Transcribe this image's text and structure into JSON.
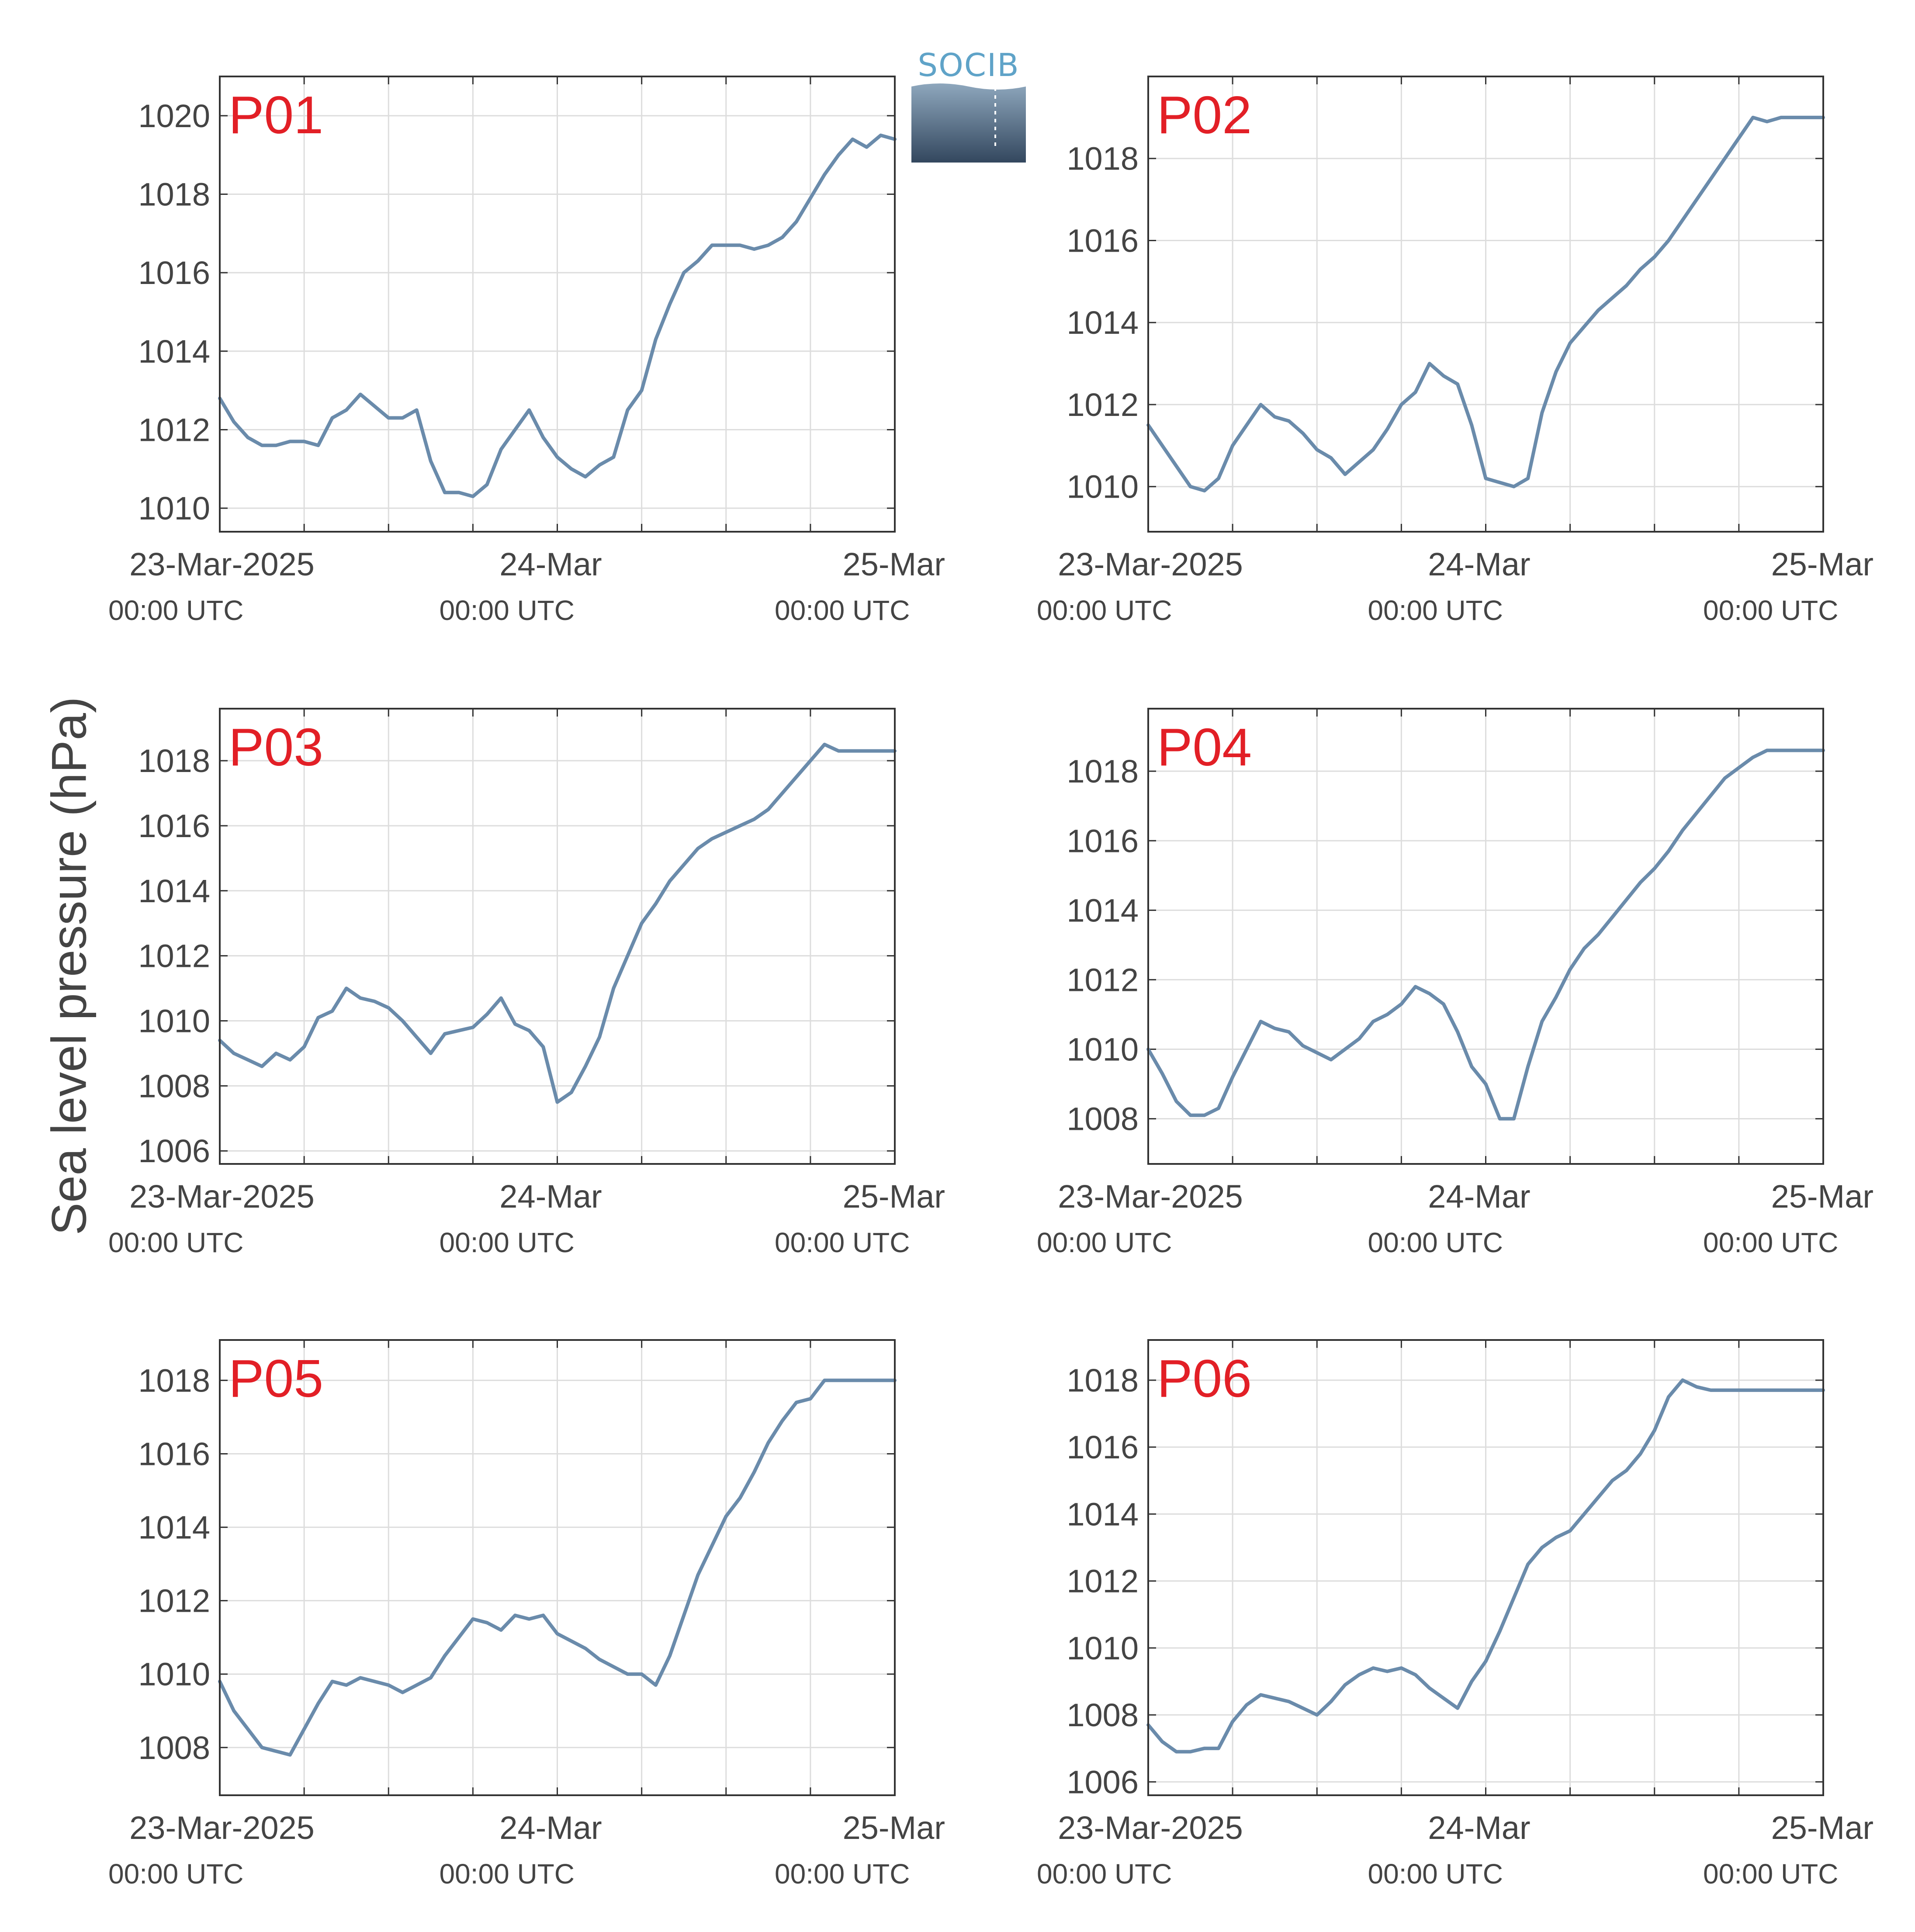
{
  "figure": {
    "ylabel": "Sea level pressure (hPa)",
    "logo_text": "SOCIB",
    "x_tick_labels": [
      "23-Mar-2025",
      "24-Mar",
      "25-Mar"
    ],
    "x_tick_sublabels": [
      "00:00 UTC",
      "00:00 UTC",
      "00:00 UTC"
    ]
  },
  "colors": {
    "line": "#6a8bab",
    "panel_label": "#e21f26",
    "axis": "#333333",
    "grid": "#dddddd",
    "tick_text": "#444444",
    "logo_text": "#5fa3c8",
    "logo_top": "#8ea7bd",
    "logo_bottom": "#33475e"
  },
  "chart_data": [
    {
      "type": "line",
      "panel": "P01",
      "xlim": [
        "2025-03-23T00:00",
        "2025-03-25T00:00"
      ],
      "ylim": [
        1009.4,
        1021.0
      ],
      "yticks": [
        1010,
        1012,
        1014,
        1016,
        1018,
        1020
      ],
      "x_hours": [
        0,
        1,
        2,
        3,
        4,
        5,
        6,
        7,
        8,
        9,
        10,
        11,
        12,
        13,
        14,
        15,
        16,
        17,
        18,
        19,
        20,
        21,
        22,
        23,
        24,
        25,
        26,
        27,
        28,
        29,
        30,
        31,
        32,
        33,
        34,
        35,
        36,
        37,
        38,
        39,
        40,
        41,
        42,
        43,
        44,
        45,
        46,
        47,
        48
      ],
      "values": [
        1012.8,
        1012.2,
        1011.8,
        1011.6,
        1011.6,
        1011.7,
        1011.7,
        1011.6,
        1012.3,
        1012.5,
        1012.9,
        1012.6,
        1012.3,
        1012.3,
        1012.5,
        1011.2,
        1010.4,
        1010.4,
        1010.3,
        1010.6,
        1011.5,
        1012.0,
        1012.5,
        1011.8,
        1011.3,
        1011.0,
        1010.8,
        1011.1,
        1011.3,
        1012.5,
        1013.0,
        1014.3,
        1015.2,
        1016.0,
        1016.3,
        1016.7,
        1016.7,
        1016.7,
        1016.6,
        1016.7,
        1016.9,
        1017.3,
        1017.9,
        1018.5,
        1019.0,
        1019.4,
        1019.2,
        1019.5,
        1019.4
      ]
    },
    {
      "type": "line",
      "panel": "P02",
      "xlim": [
        "2025-03-23T00:00",
        "2025-03-25T00:00"
      ],
      "ylim": [
        1008.9,
        1020.0
      ],
      "yticks": [
        1010,
        1012,
        1014,
        1016,
        1018
      ],
      "x_hours": [
        0,
        1,
        2,
        3,
        4,
        5,
        6,
        7,
        8,
        9,
        10,
        11,
        12,
        13,
        14,
        15,
        16,
        17,
        18,
        19,
        20,
        21,
        22,
        23,
        24,
        25,
        26,
        27,
        28,
        29,
        30,
        31,
        32,
        33,
        34,
        35,
        36,
        37,
        38,
        39,
        40,
        41,
        42,
        43,
        44,
        45,
        46,
        47,
        48
      ],
      "values": [
        1011.5,
        1011.0,
        1010.5,
        1010.0,
        1009.9,
        1010.2,
        1011.0,
        1011.5,
        1012.0,
        1011.7,
        1011.6,
        1011.3,
        1010.9,
        1010.7,
        1010.3,
        1010.6,
        1010.9,
        1011.4,
        1012.0,
        1012.3,
        1013.0,
        1012.7,
        1012.5,
        1011.5,
        1010.2,
        1010.1,
        1010.0,
        1010.2,
        1011.8,
        1012.8,
        1013.5,
        1013.9,
        1014.3,
        1014.6,
        1014.9,
        1015.3,
        1015.6,
        1016.0,
        1016.5,
        1017.0,
        1017.5,
        1018.0,
        1018.5,
        1019.0,
        1018.9,
        1019.0,
        1019.0,
        1019.0,
        1019.0
      ]
    },
    {
      "type": "line",
      "panel": "P03",
      "xlim": [
        "2025-03-23T00:00",
        "2025-03-25T00:00"
      ],
      "ylim": [
        1005.6,
        1019.6
      ],
      "yticks": [
        1006,
        1008,
        1010,
        1012,
        1014,
        1016,
        1018
      ],
      "x_hours": [
        0,
        1,
        2,
        3,
        4,
        5,
        6,
        7,
        8,
        9,
        10,
        11,
        12,
        13,
        14,
        15,
        16,
        17,
        18,
        19,
        20,
        21,
        22,
        23,
        24,
        25,
        26,
        27,
        28,
        29,
        30,
        31,
        32,
        33,
        34,
        35,
        36,
        37,
        38,
        39,
        40,
        41,
        42,
        43,
        44,
        45,
        46,
        47,
        48
      ],
      "values": [
        1009.4,
        1009.0,
        1008.8,
        1008.6,
        1009.0,
        1008.8,
        1009.2,
        1010.1,
        1010.3,
        1011.0,
        1010.7,
        1010.6,
        1010.4,
        1010.0,
        1009.5,
        1009.0,
        1009.6,
        1009.7,
        1009.8,
        1010.2,
        1010.7,
        1009.9,
        1009.7,
        1009.2,
        1007.5,
        1007.8,
        1008.6,
        1009.5,
        1011.0,
        1012.0,
        1013.0,
        1013.6,
        1014.3,
        1014.8,
        1015.3,
        1015.6,
        1015.8,
        1016.0,
        1016.2,
        1016.5,
        1017.0,
        1017.5,
        1018.0,
        1018.5,
        1018.3,
        1018.3,
        1018.3,
        1018.3,
        1018.3
      ]
    },
    {
      "type": "line",
      "panel": "P04",
      "xlim": [
        "2025-03-23T00:00",
        "2025-03-25T00:00"
      ],
      "ylim": [
        1006.7,
        1019.8
      ],
      "yticks": [
        1008,
        1010,
        1012,
        1014,
        1016,
        1018
      ],
      "x_hours": [
        0,
        1,
        2,
        3,
        4,
        5,
        6,
        7,
        8,
        9,
        10,
        11,
        12,
        13,
        14,
        15,
        16,
        17,
        18,
        19,
        20,
        21,
        22,
        23,
        24,
        25,
        26,
        27,
        28,
        29,
        30,
        31,
        32,
        33,
        34,
        35,
        36,
        37,
        38,
        39,
        40,
        41,
        42,
        43,
        44,
        45,
        46,
        47,
        48
      ],
      "values": [
        1010.0,
        1009.3,
        1008.5,
        1008.1,
        1008.1,
        1008.3,
        1009.2,
        1010.0,
        1010.8,
        1010.6,
        1010.5,
        1010.1,
        1009.9,
        1009.7,
        1010.0,
        1010.3,
        1010.8,
        1011.0,
        1011.3,
        1011.8,
        1011.6,
        1011.3,
        1010.5,
        1009.5,
        1009.0,
        1008.0,
        1008.0,
        1009.5,
        1010.8,
        1011.5,
        1012.3,
        1012.9,
        1013.3,
        1013.8,
        1014.3,
        1014.8,
        1015.2,
        1015.7,
        1016.3,
        1016.8,
        1017.3,
        1017.8,
        1018.1,
        1018.4,
        1018.6,
        1018.6,
        1018.6,
        1018.6,
        1018.6
      ]
    },
    {
      "type": "line",
      "panel": "P05",
      "xlim": [
        "2025-03-23T00:00",
        "2025-03-25T00:00"
      ],
      "ylim": [
        1006.7,
        1019.1
      ],
      "yticks": [
        1008,
        1010,
        1012,
        1014,
        1016,
        1018
      ],
      "x_hours": [
        0,
        1,
        2,
        3,
        4,
        5,
        6,
        7,
        8,
        9,
        10,
        11,
        12,
        13,
        14,
        15,
        16,
        17,
        18,
        19,
        20,
        21,
        22,
        23,
        24,
        25,
        26,
        27,
        28,
        29,
        30,
        31,
        32,
        33,
        34,
        35,
        36,
        37,
        38,
        39,
        40,
        41,
        42,
        43,
        44,
        45,
        46,
        47,
        48
      ],
      "values": [
        1009.8,
        1009.0,
        1008.5,
        1008.0,
        1007.9,
        1007.8,
        1008.5,
        1009.2,
        1009.8,
        1009.7,
        1009.9,
        1009.8,
        1009.7,
        1009.5,
        1009.7,
        1009.9,
        1010.5,
        1011.0,
        1011.5,
        1011.4,
        1011.2,
        1011.6,
        1011.5,
        1011.6,
        1011.1,
        1010.9,
        1010.7,
        1010.4,
        1010.2,
        1010.0,
        1010.0,
        1009.7,
        1010.5,
        1011.6,
        1012.7,
        1013.5,
        1014.3,
        1014.8,
        1015.5,
        1016.3,
        1016.9,
        1017.4,
        1017.5,
        1018.0,
        1018.0,
        1018.0,
        1018.0,
        1018.0,
        1018.0
      ]
    },
    {
      "type": "line",
      "panel": "P06",
      "xlim": [
        "2025-03-23T00:00",
        "2025-03-25T00:00"
      ],
      "ylim": [
        1005.6,
        1019.2
      ],
      "yticks": [
        1006,
        1008,
        1010,
        1012,
        1014,
        1016,
        1018
      ],
      "x_hours": [
        0,
        1,
        2,
        3,
        4,
        5,
        6,
        7,
        8,
        9,
        10,
        11,
        12,
        13,
        14,
        15,
        16,
        17,
        18,
        19,
        20,
        21,
        22,
        23,
        24,
        25,
        26,
        27,
        28,
        29,
        30,
        31,
        32,
        33,
        34,
        35,
        36,
        37,
        38,
        39,
        40,
        41,
        42,
        43,
        44,
        45,
        46,
        47,
        48
      ],
      "values": [
        1007.7,
        1007.2,
        1006.9,
        1006.9,
        1007.0,
        1007.0,
        1007.8,
        1008.3,
        1008.6,
        1008.5,
        1008.4,
        1008.2,
        1008.0,
        1008.4,
        1008.9,
        1009.2,
        1009.4,
        1009.3,
        1009.4,
        1009.2,
        1008.8,
        1008.5,
        1008.2,
        1009.0,
        1009.6,
        1010.5,
        1011.5,
        1012.5,
        1013.0,
        1013.3,
        1013.5,
        1014.0,
        1014.5,
        1015.0,
        1015.3,
        1015.8,
        1016.5,
        1017.5,
        1018.0,
        1017.8,
        1017.7,
        1017.7,
        1017.7,
        1017.7,
        1017.7,
        1017.7,
        1017.7,
        1017.7,
        1017.7
      ]
    }
  ]
}
